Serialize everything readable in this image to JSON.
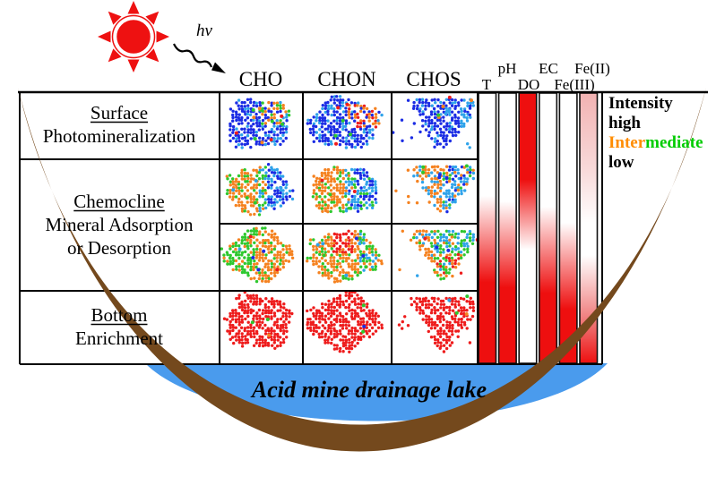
{
  "sun": {
    "photon_label": "hν",
    "color": "#ee1111"
  },
  "column_headers": [
    "CHO",
    "CHON",
    "CHOS"
  ],
  "rows": [
    {
      "lines": [
        "Surface",
        "Photomineralization"
      ]
    },
    {
      "lines": [
        "Chemocline",
        "Mineral Adsorption",
        "or Desorption"
      ]
    },
    {
      "lines": [
        "Bottom",
        "Enrichment"
      ]
    }
  ],
  "legend": {
    "title": "Intensity",
    "items": [
      {
        "label": "high",
        "color": "#ff0000"
      },
      {
        "parts": [
          {
            "text": "Inter",
            "color": "#ff8c00"
          },
          {
            "text": "mediate",
            "color": "#00cc00"
          }
        ]
      },
      {
        "label": "low",
        "color": "#0f0fff"
      }
    ]
  },
  "lake": {
    "label": "Acid mine drainage lake",
    "water_color": "#4a9bed",
    "basin_color": "#74491d"
  },
  "chart_data": {
    "type": "scatter",
    "layout": "matrix of van-Krevelen-style scatter plots (4 plot rows x 3 molecular classes) plus vertical parameter gradient bars",
    "columns": [
      "CHO",
      "CHON",
      "CHOS"
    ],
    "row_zones": [
      "Surface",
      "Chemocline (upper)",
      "Chemocline (lower)",
      "Bottom"
    ],
    "intensity_palette": {
      "db": "#1b2ce4",
      "lb": "#2fa3ea",
      "or": "#f58220",
      "gr": "#2ec82e",
      "rd": "#ee1c1c"
    },
    "palette_meaning": {
      "rd": "high intensity",
      "or": "intermediate (orange)",
      "gr": "intermediate (green)",
      "db": "low (dark blue)",
      "lb": "low (light blue)"
    },
    "cells": [
      {
        "r": 0,
        "c": 0,
        "shape": "blob",
        "seed": 11,
        "zones": [
          {
            "x1": 0.56,
            "colors": [
              "db",
              "db",
              "db",
              "db",
              "db",
              "lb"
            ]
          },
          {
            "x0": 0.56,
            "y1": 0.55,
            "colors": [
              "or",
              "or",
              "gr",
              "lb",
              "db",
              "db"
            ]
          },
          {
            "x0": 0.56,
            "colors": [
              "lb",
              "db",
              "lb",
              "db"
            ]
          }
        ],
        "accents": [
          [
            "rd",
            3
          ],
          [
            "gr",
            5
          ],
          [
            "or",
            3
          ]
        ]
      },
      {
        "r": 0,
        "c": 1,
        "shape": "blob",
        "seed": 22,
        "zones": [
          {
            "x1": 0.55,
            "colors": [
              "db",
              "db",
              "db",
              "db",
              "lb"
            ]
          },
          {
            "x0": 0.55,
            "y1": 0.6,
            "colors": [
              "or",
              "or",
              "db",
              "lb",
              "rd"
            ]
          },
          {
            "x0": 0.55,
            "colors": [
              "db",
              "lb",
              "db"
            ]
          }
        ],
        "accents": [
          [
            "rd",
            3
          ],
          [
            "gr",
            3
          ]
        ]
      },
      {
        "r": 0,
        "c": 2,
        "shape": "fan",
        "seed": 33,
        "zones": [
          {
            "x1": 0.78,
            "colors": [
              "db",
              "db",
              "db",
              "db",
              "db",
              "lb"
            ]
          },
          {
            "x0": 0.78,
            "colors": [
              "lb",
              "lb",
              "db"
            ]
          }
        ],
        "accents": [
          [
            "rd",
            2
          ],
          [
            "or",
            3
          ],
          [
            "gr",
            1
          ],
          [
            "lb",
            2
          ]
        ]
      },
      {
        "r": 1,
        "c": 0,
        "shape": "blob",
        "seed": 44,
        "zones": [
          {
            "x1": 0.5,
            "colors": [
              "or",
              "or",
              "or",
              "or",
              "gr"
            ]
          },
          {
            "x0": 0.5,
            "x1": 0.62,
            "colors": [
              "gr",
              "lb",
              "gr",
              "lb",
              "or"
            ]
          },
          {
            "x0": 0.62,
            "colors": [
              "db",
              "db",
              "db",
              "lb",
              "lb"
            ]
          }
        ],
        "accents": [
          [
            "lb",
            3
          ],
          [
            "gr",
            2
          ]
        ]
      },
      {
        "r": 1,
        "c": 1,
        "shape": "blob",
        "seed": 55,
        "zones": [
          {
            "x1": 0.5,
            "colors": [
              "or",
              "or",
              "or",
              "or",
              "gr"
            ]
          },
          {
            "x0": 0.5,
            "x1": 0.64,
            "colors": [
              "lb",
              "lb",
              "gr",
              "db",
              "or"
            ]
          },
          {
            "x0": 0.64,
            "colors": [
              "db",
              "db",
              "lb",
              "lb",
              "gr"
            ]
          }
        ],
        "accents": [
          [
            "rd",
            2
          ],
          [
            "gr",
            2
          ]
        ]
      },
      {
        "r": 1,
        "c": 2,
        "shape": "fan",
        "seed": 66,
        "zones": [
          {
            "x1": 0.52,
            "colors": [
              "or",
              "or",
              "or",
              "or",
              "lb"
            ]
          },
          {
            "x0": 0.52,
            "colors": [
              "lb",
              "lb",
              "lb",
              "db",
              "gr",
              "or"
            ]
          }
        ],
        "accents": [
          [
            "db",
            3
          ],
          [
            "gr",
            3
          ]
        ]
      },
      {
        "r": 2,
        "c": 0,
        "shape": "blob",
        "seed": 77,
        "zones": [
          {
            "x1": 0.46,
            "colors": [
              "gr",
              "gr",
              "gr",
              "gr",
              "or"
            ]
          },
          {
            "x0": 0.46,
            "colors": [
              "or",
              "or",
              "or",
              "or",
              "gr"
            ]
          }
        ],
        "accents": [
          [
            "db",
            3
          ],
          [
            "rd",
            2
          ],
          [
            "lb",
            1
          ]
        ]
      },
      {
        "r": 2,
        "c": 1,
        "shape": "blob",
        "seed": 88,
        "zones": [
          {
            "x0": 0.34,
            "x1": 0.64,
            "y1": 0.48,
            "colors": [
              "rd",
              "rd",
              "rd",
              "or"
            ]
          },
          {
            "x0": 0.72,
            "colors": [
              "gr",
              "gr",
              "or",
              "lb"
            ]
          },
          {
            "colors": [
              "or",
              "or",
              "or",
              "or",
              "gr"
            ]
          }
        ],
        "accents": [
          [
            "lb",
            4
          ],
          [
            "db",
            2
          ],
          [
            "gr",
            3
          ]
        ]
      },
      {
        "r": 2,
        "c": 2,
        "shape": "fan",
        "seed": 99,
        "zones": [
          {
            "x1": 0.4,
            "colors": [
              "or",
              "or",
              "or",
              "gr",
              "lb"
            ]
          },
          {
            "x0": 0.4,
            "y1": 0.5,
            "colors": [
              "lb",
              "lb",
              "gr",
              "gr",
              "or"
            ]
          },
          {
            "x0": 0.4,
            "colors": [
              "or",
              "gr",
              "gr",
              "lb",
              "rd",
              "or"
            ]
          }
        ],
        "accents": [
          [
            "rd",
            2
          ],
          [
            "db",
            2
          ]
        ]
      },
      {
        "r": 3,
        "c": 0,
        "shape": "blob",
        "seed": 10,
        "zones": [
          {
            "colors": [
              "rd"
            ]
          }
        ],
        "accents": [
          [
            "gr",
            2
          ],
          [
            "or",
            1
          ]
        ]
      },
      {
        "r": 3,
        "c": 1,
        "shape": "blob",
        "seed": 20,
        "zones": [
          {
            "colors": [
              "rd"
            ]
          }
        ],
        "accents": [
          [
            "gr",
            2
          ],
          [
            "db",
            1
          ]
        ]
      },
      {
        "r": 3,
        "c": 2,
        "shape": "fan",
        "seed": 30,
        "zones": [
          {
            "colors": [
              "rd"
            ]
          }
        ],
        "accents": [
          [
            "lb",
            1
          ],
          [
            "gr",
            2
          ],
          [
            "or",
            1
          ]
        ]
      }
    ],
    "parameter_bars": [
      {
        "name": "T",
        "label_row": "bottom",
        "gradient": [
          [
            "0%",
            "#ffffff"
          ],
          [
            "38%",
            "#ffffff"
          ],
          [
            "70%",
            "#ee0f0f"
          ],
          [
            "100%",
            "#ee0f0f"
          ]
        ]
      },
      {
        "name": "pH",
        "label_row": "top",
        "gradient": [
          [
            "0%",
            "#ffffff"
          ],
          [
            "40%",
            "#ffffff"
          ],
          [
            "72%",
            "#ee0f0f"
          ],
          [
            "100%",
            "#ee0f0f"
          ]
        ]
      },
      {
        "name": "DO",
        "label_row": "bottom",
        "gradient": [
          [
            "0%",
            "#ee0f0f"
          ],
          [
            "32%",
            "#ee0f0f"
          ],
          [
            "58%",
            "#ffffff"
          ],
          [
            "100%",
            "#ffffff"
          ]
        ]
      },
      {
        "name": "EC",
        "label_row": "top",
        "gradient": [
          [
            "0%",
            "#ffffff"
          ],
          [
            "42%",
            "#ffffff"
          ],
          [
            "74%",
            "#ee0f0f"
          ],
          [
            "100%",
            "#ee0f0f"
          ]
        ]
      },
      {
        "name": "Fe(III)",
        "label_row": "bottom",
        "gradient": [
          [
            "0%",
            "#ffffff"
          ],
          [
            "48%",
            "#ffffff"
          ],
          [
            "80%",
            "#ee0f0f"
          ],
          [
            "100%",
            "#ee0f0f"
          ]
        ]
      },
      {
        "name": "Fe(II)",
        "label_row": "top",
        "gradient": [
          [
            "0%",
            "#f2b2b2"
          ],
          [
            "30%",
            "#f8dcdc"
          ],
          [
            "48%",
            "#ffffff"
          ],
          [
            "60%",
            "#ffffff"
          ],
          [
            "86%",
            "#ee6f6f"
          ],
          [
            "100%",
            "#ee0f0f"
          ]
        ]
      }
    ],
    "grid": {
      "legend_position": "right",
      "bars_span": "full water column (surface to bottom)"
    }
  }
}
